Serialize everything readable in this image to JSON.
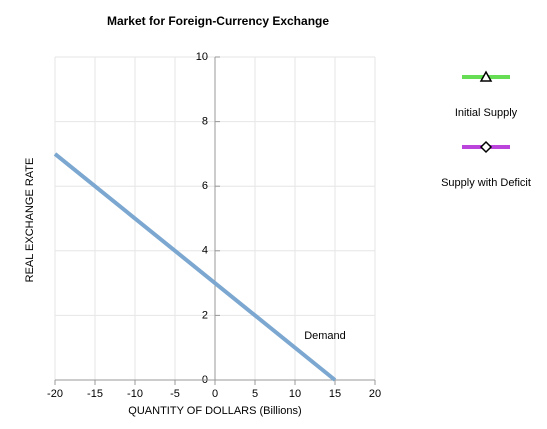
{
  "chart_data": {
    "type": "line",
    "title": "Market for Foreign-Currency Exchange",
    "xlabel": "QUANTITY OF DOLLARS (Billions)",
    "ylabel": "REAL EXCHANGE RATE",
    "x": [
      -20,
      15
    ],
    "series": [
      {
        "name": "Demand",
        "color": "#7ba7d0",
        "values": [
          7,
          0
        ]
      },
      {
        "name": "Initial Supply",
        "color": "#66dd55",
        "marker": "triangle",
        "values": [
          null,
          null
        ]
      },
      {
        "name": "Supply with Deficit",
        "color": "#bb44dd",
        "marker": "diamond",
        "values": [
          null,
          null
        ]
      }
    ],
    "xlim": [
      -20,
      20
    ],
    "xticks": [
      -20,
      -15,
      -10,
      -5,
      0,
      5,
      10,
      15,
      20
    ],
    "ylim": [
      0,
      10
    ],
    "yticks": [
      0,
      2,
      4,
      6,
      8,
      10
    ],
    "grid": true,
    "legend": "right"
  }
}
